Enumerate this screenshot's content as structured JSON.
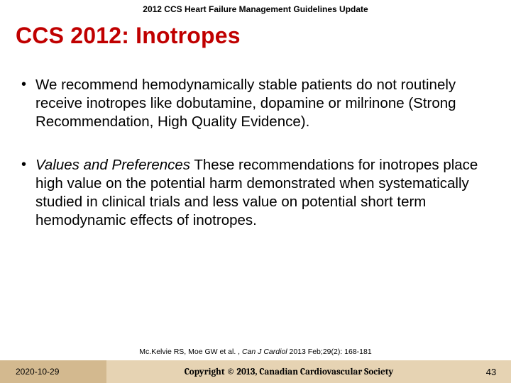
{
  "header": {
    "subtitle": "2012 CCS Heart Failure Management Guidelines Update"
  },
  "title": "CCS 2012: Inotropes",
  "bullets": [
    {
      "lead": "",
      "text": "We recommend hemodynamically stable patients do not routinely receive inotropes like dobutamine, dopamine or milrinone (Strong Recommendation, High Quality Evidence)."
    },
    {
      "lead": "Values and Preferences",
      "text": " These recommendations for inotropes place high value on the potential harm demonstrated when systematically studied in clinical trials and less value on potential short term hemodynamic effects of inotropes."
    }
  ],
  "citation": {
    "authors": "Mc.Kelvie RS, Moe GW et al. , ",
    "journal": "Can J Cardiol ",
    "rest": "2013 Feb;29(2): 168-181"
  },
  "footer": {
    "date": "2020-10-29",
    "copyright": "Copyright © 2013, Canadian Cardiovascular Society",
    "page": "43"
  },
  "colors": {
    "title": "#c00000",
    "footer_date_bg": "#d3b98f",
    "footer_main_bg": "#e6d3b3",
    "background": "#ffffff",
    "text": "#000000"
  },
  "typography": {
    "subtitle_fontsize": 12,
    "title_fontsize": 32,
    "body_fontsize": 20.5,
    "citation_fontsize": 10.5,
    "footer_fontsize": 13
  }
}
